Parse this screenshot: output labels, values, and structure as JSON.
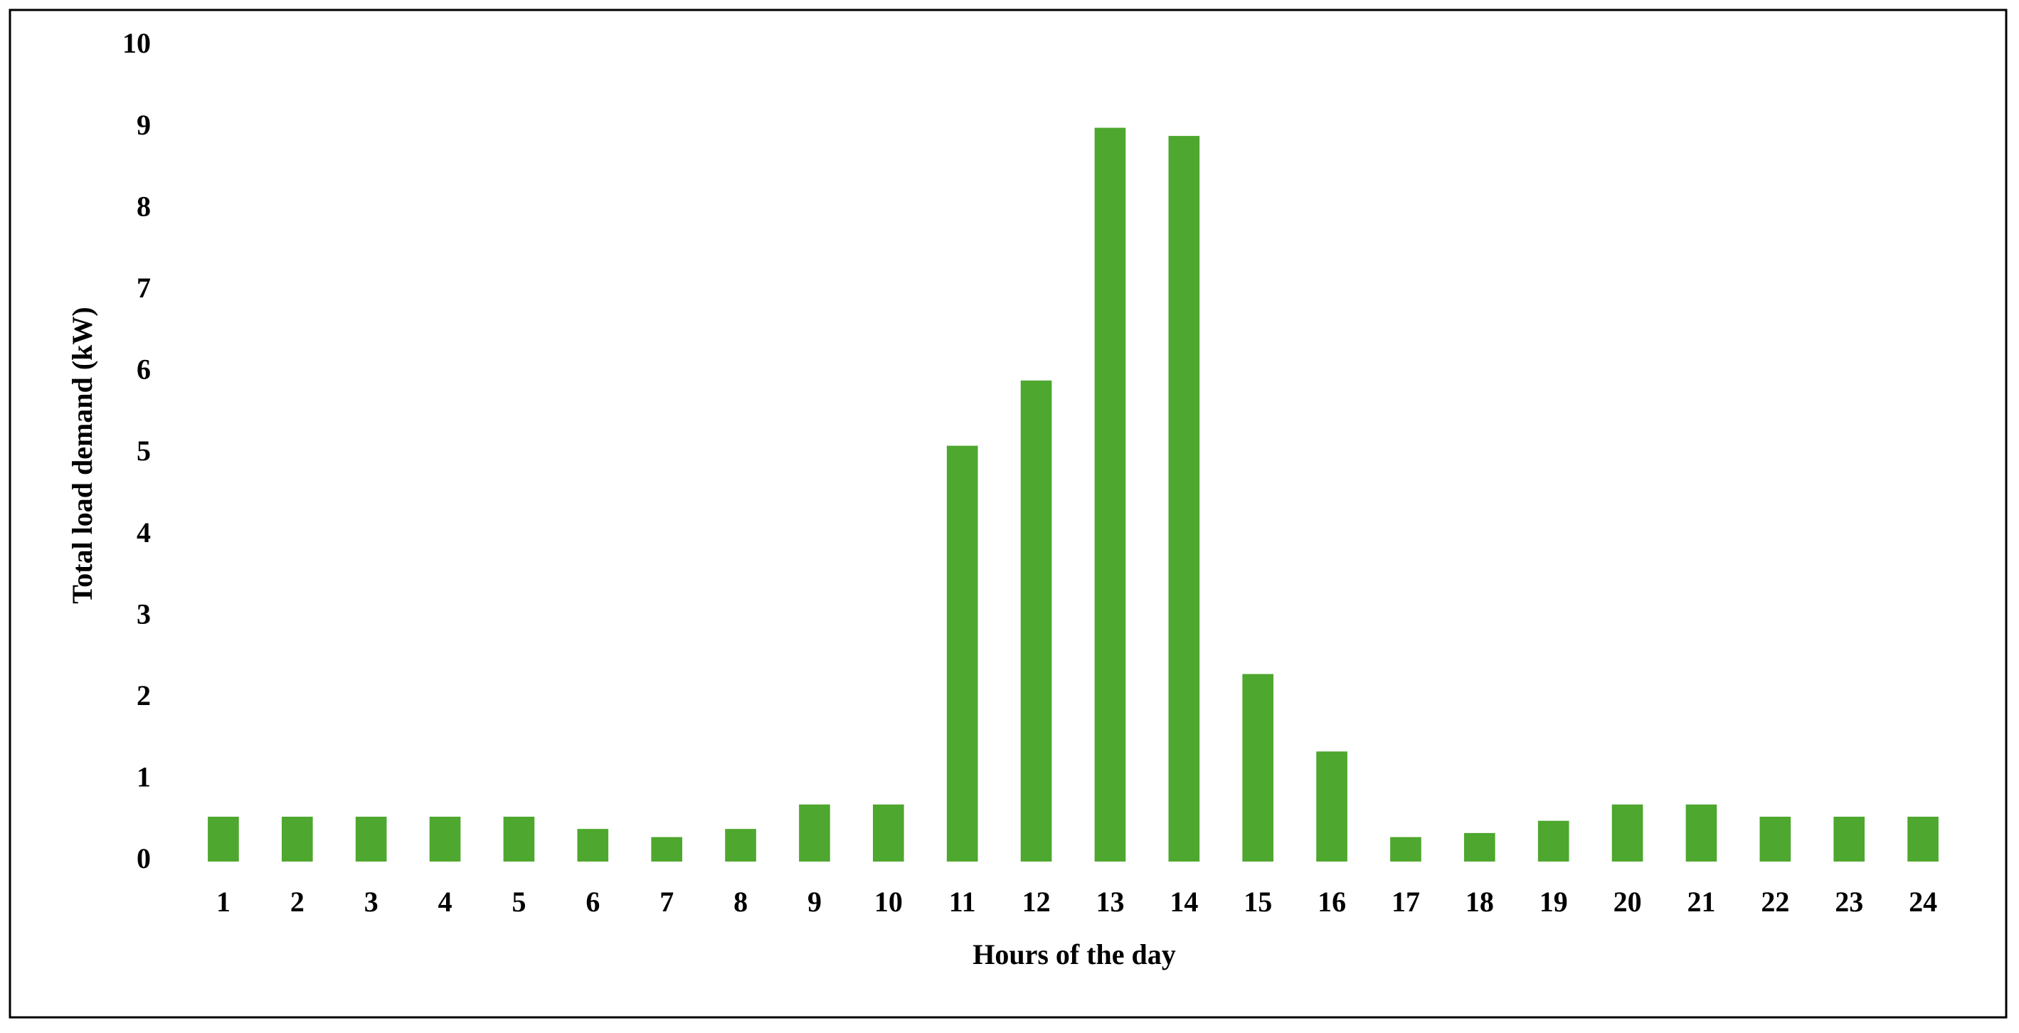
{
  "chart_data": {
    "type": "bar",
    "x_label": "Hours of the day",
    "y_label": "Total load demand (kW)",
    "categories": [
      "1",
      "2",
      "3",
      "4",
      "5",
      "6",
      "7",
      "8",
      "9",
      "10",
      "11",
      "12",
      "13",
      "14",
      "15",
      "16",
      "17",
      "18",
      "19",
      "20",
      "21",
      "22",
      "23",
      "24"
    ],
    "values": [
      0.55,
      0.55,
      0.55,
      0.55,
      0.55,
      0.4,
      0.3,
      0.4,
      0.7,
      0.7,
      5.1,
      5.9,
      9.0,
      8.9,
      2.3,
      1.35,
      0.3,
      0.35,
      0.5,
      0.7,
      0.7,
      0.55,
      0.55,
      0.55
    ],
    "color": "#4ea72e",
    "ylim": [
      0,
      10
    ],
    "yticks": [
      0,
      1,
      2,
      3,
      4,
      5,
      6,
      7,
      8,
      9,
      10
    ],
    "grid": false
  }
}
